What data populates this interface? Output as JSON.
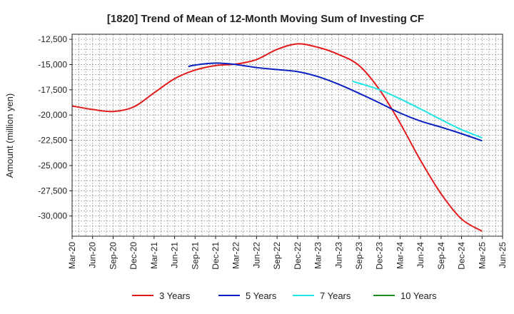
{
  "chart_data": {
    "type": "line",
    "title": "[1820]  Trend of Mean of 12-Month Moving Sum of Investing CF",
    "xlabel": "",
    "ylabel": "Amount (million yen)",
    "ylim": [
      -32000,
      -12000
    ],
    "yticks": [
      -12500,
      -15000,
      -17500,
      -20000,
      -22500,
      -25000,
      -27500,
      -30000
    ],
    "ytick_labels": [
      "-12,500",
      "-15,000",
      "-17,500",
      "-20,000",
      "-22,500",
      "-25,000",
      "-27,500",
      "-30,000"
    ],
    "x_labels": [
      "Mar-20",
      "Jun-20",
      "Sep-20",
      "Dec-20",
      "Mar-21",
      "Jun-21",
      "Sep-21",
      "Dec-21",
      "Mar-22",
      "Jun-22",
      "Sep-22",
      "Dec-22",
      "Mar-23",
      "Jun-23",
      "Sep-23",
      "Dec-23",
      "Mar-24",
      "Jun-24",
      "Sep-24",
      "Dec-24",
      "Mar-25",
      "Jun-25"
    ],
    "grid": true,
    "legend_position": "bottom",
    "series": [
      {
        "name": "3 Years",
        "color": "#e31a1c",
        "points": [
          [
            0,
            -19100
          ],
          [
            1,
            -19450
          ],
          [
            2,
            -19650
          ],
          [
            3,
            -19200
          ],
          [
            4,
            -17800
          ],
          [
            5,
            -16400
          ],
          [
            6,
            -15550
          ],
          [
            7,
            -15100
          ],
          [
            8,
            -14950
          ],
          [
            9,
            -14500
          ],
          [
            10,
            -13500
          ],
          [
            11,
            -12950
          ],
          [
            12,
            -13300
          ],
          [
            13,
            -14000
          ],
          [
            14,
            -15100
          ],
          [
            15,
            -17500
          ],
          [
            16,
            -20800
          ],
          [
            17,
            -24500
          ],
          [
            18,
            -27800
          ],
          [
            19,
            -30300
          ],
          [
            20,
            -31500
          ]
        ]
      },
      {
        "name": "5 Years",
        "color": "#0a1fbf",
        "points": [
          [
            5.67,
            -15200
          ],
          [
            6,
            -15050
          ],
          [
            7,
            -14850
          ],
          [
            8,
            -15000
          ],
          [
            9,
            -15300
          ],
          [
            10,
            -15500
          ],
          [
            11,
            -15700
          ],
          [
            12,
            -16200
          ],
          [
            13,
            -16950
          ],
          [
            14,
            -17850
          ],
          [
            15,
            -18800
          ],
          [
            16,
            -19800
          ],
          [
            17,
            -20600
          ],
          [
            18,
            -21200
          ],
          [
            19,
            -21850
          ],
          [
            20,
            -22550
          ]
        ]
      },
      {
        "name": "7 Years",
        "color": "#22e6e6",
        "points": [
          [
            13.67,
            -16650
          ],
          [
            14,
            -16850
          ],
          [
            15,
            -17500
          ],
          [
            16,
            -18400
          ],
          [
            17,
            -19400
          ],
          [
            18,
            -20450
          ],
          [
            19,
            -21450
          ],
          [
            20,
            -22250
          ]
        ]
      },
      {
        "name": "10 Years",
        "color": "#1e8a1e",
        "points": []
      }
    ]
  }
}
